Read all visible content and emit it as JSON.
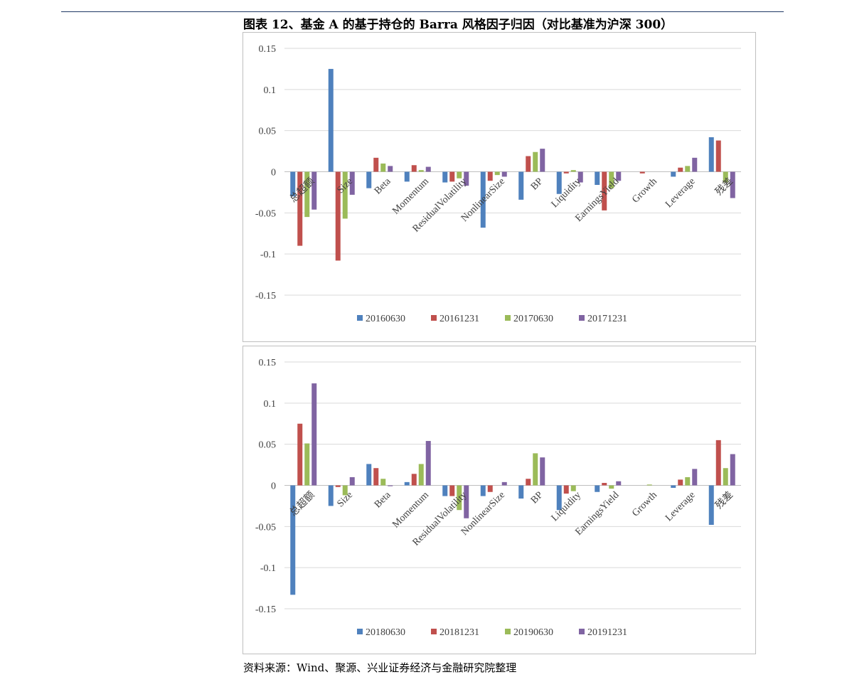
{
  "figure": {
    "title": "图表 12、基金 A 的基于持仓的 Barra 风格因子归因（对比基准为沪深 300）",
    "source": "资料来源：Wind、聚源、兴业证券经济与金融研究院整理"
  },
  "chart_data": [
    {
      "type": "bar",
      "title": "",
      "xlabel": "",
      "ylabel": "",
      "ylim": [
        -0.15,
        0.15
      ],
      "yticks": [
        0.15,
        0.1,
        0.05,
        0,
        -0.05,
        -0.1,
        -0.15
      ],
      "ytick_labels": [
        "0.15",
        "0.1",
        "0.05",
        "0",
        "-0.05",
        "-0.1",
        "-0.15"
      ],
      "grid": true,
      "legend_position": "bottom",
      "categories": [
        "总超额",
        "Size",
        "Beta",
        "Momentum",
        "ResidualVolatility",
        "NonlinearSize",
        "BP",
        "Liquidity",
        "EarningsYield",
        "Growth",
        "Leverage",
        "残差"
      ],
      "series": [
        {
          "name": "20160630",
          "color": "#4f81bd",
          "values": [
            -0.03,
            0.125,
            -0.02,
            -0.012,
            -0.013,
            -0.068,
            -0.034,
            -0.027,
            -0.016,
            0.0,
            -0.006,
            0.042
          ]
        },
        {
          "name": "20161231",
          "color": "#c0504d",
          "values": [
            -0.09,
            -0.108,
            0.017,
            0.008,
            -0.012,
            -0.011,
            0.019,
            -0.002,
            -0.047,
            -0.002,
            0.005,
            0.038
          ]
        },
        {
          "name": "20170630",
          "color": "#9bbb59",
          "values": [
            -0.055,
            -0.057,
            0.01,
            0.002,
            -0.008,
            -0.004,
            0.024,
            0.002,
            -0.02,
            0.0,
            0.007,
            -0.013
          ]
        },
        {
          "name": "20171231",
          "color": "#8064a2",
          "values": [
            -0.046,
            -0.028,
            0.007,
            0.006,
            -0.017,
            -0.006,
            0.028,
            -0.013,
            -0.011,
            0.0,
            0.017,
            -0.032
          ]
        }
      ]
    },
    {
      "type": "bar",
      "title": "",
      "xlabel": "",
      "ylabel": "",
      "ylim": [
        -0.15,
        0.15
      ],
      "yticks": [
        0.15,
        0.1,
        0.05,
        0,
        -0.05,
        -0.1,
        -0.15
      ],
      "ytick_labels": [
        "0.15",
        "0.1",
        "0.05",
        "0",
        "-0.05",
        "-0.1",
        "-0.15"
      ],
      "grid": true,
      "legend_position": "bottom",
      "categories": [
        "总超额",
        "Size",
        "Beta",
        "Momentum",
        "ResidualVolatility",
        "NonlinearSize",
        "BP",
        "Liquidity",
        "EarningsYield",
        "Growth",
        "Leverage",
        "残差"
      ],
      "series": [
        {
          "name": "20180630",
          "color": "#4f81bd",
          "values": [
            -0.133,
            -0.025,
            0.026,
            0.004,
            -0.013,
            -0.013,
            -0.016,
            -0.03,
            -0.008,
            0.0,
            -0.003,
            -0.048
          ]
        },
        {
          "name": "20181231",
          "color": "#c0504d",
          "values": [
            0.075,
            -0.002,
            0.021,
            0.014,
            -0.013,
            -0.008,
            0.008,
            -0.01,
            0.003,
            0.0,
            0.007,
            0.055
          ]
        },
        {
          "name": "20190630",
          "color": "#9bbb59",
          "values": [
            0.051,
            -0.012,
            0.008,
            0.026,
            -0.03,
            0.0,
            0.039,
            -0.007,
            -0.004,
            0.001,
            0.01,
            0.021
          ]
        },
        {
          "name": "20191231",
          "color": "#8064a2",
          "values": [
            0.124,
            0.01,
            -0.001,
            0.054,
            -0.04,
            0.004,
            0.034,
            0.0,
            0.005,
            0.0,
            0.02,
            0.038
          ]
        }
      ]
    }
  ]
}
